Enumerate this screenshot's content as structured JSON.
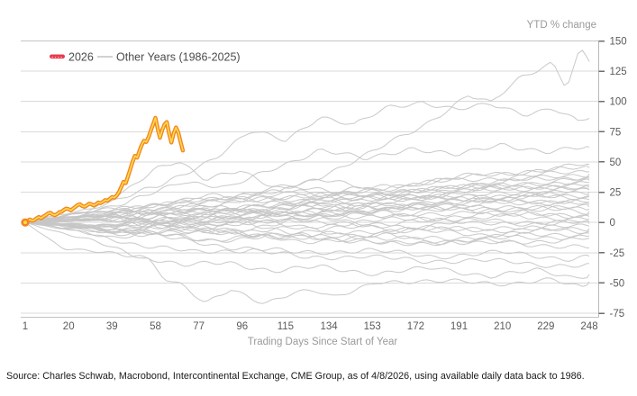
{
  "header": {
    "y_axis_unit_label": "YTD % change"
  },
  "legend": {
    "entry_2026": {
      "label": "2026",
      "swatch_color": "#e8394e"
    },
    "entry_other": {
      "label": "Other Years (1986-2025)",
      "swatch_color": "#c3c3c3"
    }
  },
  "footer": {
    "source": "Source: Charles Schwab, Macrobond, Intercontinental Exchange, CME Group, as of 4/8/2026, using available daily data back to 1986."
  },
  "colors": {
    "grid": "#dadada",
    "grid_top": "#c4c4c4",
    "axis": "#b8b8b8",
    "tick": "#6e6e6e",
    "tick_label": "#5a5a5a",
    "axis_title": "#9a9a9a",
    "gray_series": "#c6c6c6",
    "accent_outer": "#f28522",
    "accent_core": "#ffd84a"
  },
  "chart_data": {
    "type": "line",
    "title": "",
    "xlabel": "Trading Days Since Start of Year",
    "ylabel": "YTD % change",
    "xlim": [
      1,
      248
    ],
    "ylim": [
      -75,
      150
    ],
    "x_ticks": [
      1,
      20,
      39,
      58,
      77,
      96,
      115,
      134,
      153,
      172,
      191,
      210,
      229,
      248
    ],
    "y_ticks": [
      150,
      125,
      100,
      75,
      50,
      25,
      0,
      -25,
      -50,
      -75
    ],
    "grid": "horizontal",
    "legend_position": "top-left",
    "series_2026": {
      "name": "2026",
      "start_day": 1,
      "values": [
        0,
        1,
        2.5,
        1.5,
        2,
        3.5,
        4.5,
        3.5,
        5,
        6,
        7.5,
        8,
        6.5,
        6,
        7,
        8.5,
        9,
        10.5,
        11.5,
        11,
        10,
        11.5,
        13,
        14.5,
        15,
        13.5,
        13,
        14,
        15.5,
        15,
        14,
        15,
        16.5,
        16,
        17,
        18.5,
        18,
        19.5,
        21,
        20.5,
        22,
        25,
        29,
        33.5,
        32.5,
        38,
        44,
        50,
        55,
        53.5,
        59,
        64,
        67.5,
        66.5,
        70.5,
        76,
        81,
        86.5,
        77.5,
        70,
        76.5,
        81,
        83,
        73.5,
        66,
        73.5,
        78.5,
        74.5,
        67,
        59.5
      ]
    },
    "other_years": {
      "name": "Other Years (1986-2025)",
      "default_anchor_days": [
        1,
        40,
        80,
        120,
        160,
        200,
        248
      ],
      "lines": [
        {
          "d": [
            1,
            40,
            80,
            120,
            150,
            175,
            195,
            205,
            218,
            232,
            238,
            244,
            248
          ],
          "v": [
            0,
            8,
            18,
            30,
            55,
            80,
            105,
            98,
            120,
            133,
            112,
            143,
            133
          ]
        },
        {
          "d": [
            1,
            30,
            60,
            85,
            100,
            115,
            130,
            145,
            160,
            175,
            190,
            205,
            220,
            232,
            243,
            248
          ],
          "v": [
            0,
            12,
            30,
            55,
            75,
            68,
            88,
            80,
            95,
            100,
            93,
            97,
            90,
            95,
            83,
            86
          ]
        },
        {
          "d": [
            1,
            45,
            70,
            90,
            110,
            130,
            150,
            170,
            190,
            210,
            230,
            248
          ],
          "v": [
            0,
            15,
            35,
            28,
            45,
            60,
            52,
            62,
            55,
            65,
            58,
            62
          ]
        },
        {
          "d": [
            1,
            30,
            45,
            58,
            68,
            80,
            95,
            110,
            130,
            160,
            200,
            248
          ],
          "v": [
            0,
            10,
            25,
            45,
            52,
            35,
            42,
            30,
            35,
            25,
            30,
            27
          ]
        },
        {
          "d": [
            1,
            10,
            30,
            45,
            55,
            62,
            70,
            80,
            91,
            106,
            118,
            128,
            136,
            155,
            175,
            195,
            215,
            232,
            245,
            248
          ],
          "v": [
            0,
            -5,
            -15,
            -25,
            -30,
            -45,
            -52,
            -68,
            -56,
            -66,
            -58,
            -57,
            -63,
            -48,
            -50,
            -48,
            -51,
            -48,
            -53,
            -49
          ]
        },
        {
          "d": [
            1,
            18,
            35,
            50,
            60,
            70,
            90,
            110,
            130,
            155,
            180,
            205,
            225,
            240,
            248
          ],
          "v": [
            0,
            -22,
            -25,
            -27,
            -31,
            -36,
            -33,
            -40,
            -37,
            -42,
            -38,
            -44,
            -40,
            -45,
            -43
          ]
        },
        {
          "d": [
            1,
            25,
            50,
            75,
            100,
            125,
            150,
            175,
            200,
            225,
            248
          ],
          "v": [
            0,
            -8,
            -18,
            -25,
            -22,
            -30,
            -27,
            -33,
            -30,
            -36,
            -34
          ]
        },
        {
          "d": [
            1,
            30,
            60,
            90,
            120,
            150,
            180,
            210,
            240,
            248
          ],
          "v": [
            0,
            -5,
            -12,
            -20,
            -25,
            -23,
            -28,
            -25,
            -30,
            -28
          ]
        },
        {
          "v": [
            0,
            -6,
            -14,
            -10,
            -18,
            -15,
            -21
          ]
        },
        {
          "v": [
            0,
            8,
            14,
            22,
            30,
            38,
            48
          ]
        },
        {
          "v": [
            0,
            -4,
            6,
            18,
            28,
            40,
            45
          ]
        },
        {
          "v": [
            0,
            10,
            22,
            16,
            30,
            36,
            42
          ]
        },
        {
          "v": [
            0,
            5,
            -2,
            12,
            22,
            32,
            40
          ]
        },
        {
          "v": [
            0,
            12,
            18,
            28,
            22,
            33,
            38
          ]
        },
        {
          "v": [
            0,
            -6,
            2,
            14,
            24,
            28,
            35
          ]
        },
        {
          "v": [
            0,
            8,
            20,
            26,
            18,
            27,
            33
          ]
        },
        {
          "v": [
            0,
            4,
            12,
            6,
            18,
            26,
            31
          ]
        },
        {
          "v": [
            0,
            -3,
            8,
            16,
            24,
            20,
            29
          ]
        },
        {
          "v": [
            0,
            10,
            4,
            14,
            22,
            18,
            27
          ]
        },
        {
          "v": [
            0,
            6,
            16,
            22,
            12,
            20,
            25
          ]
        },
        {
          "v": [
            0,
            -5,
            -10,
            2,
            12,
            18,
            23
          ]
        },
        {
          "v": [
            0,
            7,
            14,
            8,
            16,
            24,
            21
          ]
        },
        {
          "v": [
            0,
            3,
            10,
            18,
            10,
            15,
            19
          ]
        },
        {
          "v": [
            0,
            -8,
            -2,
            8,
            14,
            20,
            17
          ]
        },
        {
          "v": [
            0,
            5,
            12,
            4,
            10,
            18,
            15
          ]
        },
        {
          "v": [
            0,
            9,
            2,
            10,
            16,
            8,
            13
          ]
        },
        {
          "v": [
            0,
            -4,
            6,
            14,
            6,
            12,
            11
          ]
        },
        {
          "v": [
            0,
            6,
            -3,
            4,
            12,
            14,
            9
          ]
        },
        {
          "v": [
            0,
            2,
            10,
            6,
            -2,
            5,
            7
          ]
        },
        {
          "v": [
            0,
            -7,
            0,
            8,
            4,
            10,
            5
          ]
        },
        {
          "v": [
            0,
            4,
            8,
            -4,
            2,
            6,
            3
          ]
        },
        {
          "v": [
            0,
            -2,
            5,
            2,
            8,
            -2,
            1
          ]
        },
        {
          "v": [
            0,
            5,
            -5,
            3,
            -6,
            2,
            -1
          ]
        },
        {
          "v": [
            0,
            -6,
            4,
            -8,
            -2,
            -7,
            -3
          ]
        },
        {
          "v": [
            0,
            3,
            -7,
            -12,
            -6,
            -10,
            -5
          ]
        },
        {
          "v": [
            0,
            -10,
            -4,
            -14,
            -8,
            -4,
            -7
          ]
        },
        {
          "v": [
            0,
            2,
            -8,
            -5,
            -14,
            -12,
            -9
          ]
        },
        {
          "v": [
            0,
            -5,
            -15,
            -10,
            -18,
            -14,
            -11
          ]
        },
        {
          "v": [
            0,
            -12,
            -6,
            -16,
            -11,
            -18,
            -13
          ]
        },
        {
          "v": [
            0,
            -2,
            12,
            26,
            20,
            30,
            36
          ]
        }
      ]
    }
  }
}
